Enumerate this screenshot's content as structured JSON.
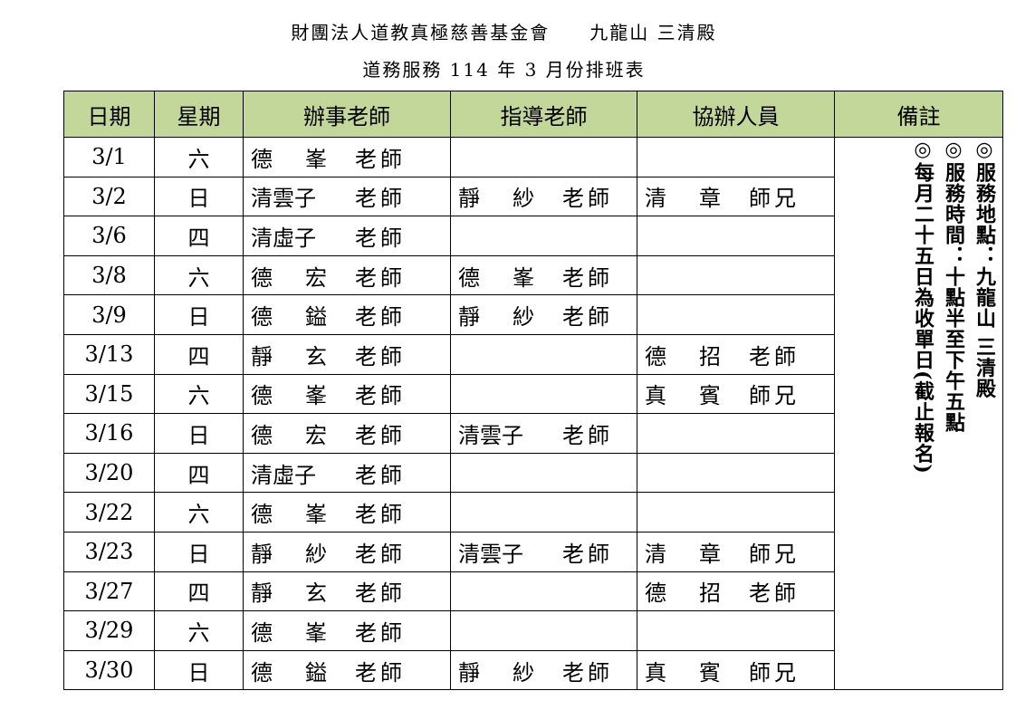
{
  "title_line1": "財團法人道教真極慈善基金會　　九龍山 三清殿",
  "title_line2": "道務服務 114 年 3 月份排班表",
  "headers": [
    "日期",
    "星期",
    "辦事老師",
    "指導老師",
    "協辦人員",
    "備註"
  ],
  "rows": [
    {
      "date": "3/1",
      "day": "六",
      "main": {
        "name": "德峯",
        "title": "老師"
      },
      "guide": null,
      "assist": null
    },
    {
      "date": "3/2",
      "day": "日",
      "main": {
        "name": "清雲子",
        "title": "老師"
      },
      "guide": {
        "name": "靜紗",
        "title": "老師"
      },
      "assist": {
        "name": "清章",
        "title": "師兄"
      }
    },
    {
      "date": "3/6",
      "day": "四",
      "main": {
        "name": "清虛子",
        "title": "老師"
      },
      "guide": null,
      "assist": null
    },
    {
      "date": "3/8",
      "day": "六",
      "main": {
        "name": "德宏",
        "title": "老師"
      },
      "guide": {
        "name": "德峯",
        "title": "老師"
      },
      "assist": null
    },
    {
      "date": "3/9",
      "day": "日",
      "main": {
        "name": "德鎰",
        "title": "老師"
      },
      "guide": {
        "name": "靜紗",
        "title": "老師"
      },
      "assist": null
    },
    {
      "date": "3/13",
      "day": "四",
      "main": {
        "name": "靜玄",
        "title": "老師"
      },
      "guide": null,
      "assist": {
        "name": "德招",
        "title": "老師"
      }
    },
    {
      "date": "3/15",
      "day": "六",
      "main": {
        "name": "德峯",
        "title": "老師"
      },
      "guide": null,
      "assist": {
        "name": "真賓",
        "title": "師兄"
      }
    },
    {
      "date": "3/16",
      "day": "日",
      "main": {
        "name": "德宏",
        "title": "老師"
      },
      "guide": {
        "name": "清雲子",
        "title": "老師"
      },
      "assist": null
    },
    {
      "date": "3/20",
      "day": "四",
      "main": {
        "name": "清虛子",
        "title": "老師"
      },
      "guide": null,
      "assist": null
    },
    {
      "date": "3/22",
      "day": "六",
      "main": {
        "name": "德峯",
        "title": "老師"
      },
      "guide": null,
      "assist": null
    },
    {
      "date": "3/23",
      "day": "日",
      "main": {
        "name": "靜紗",
        "title": "老師"
      },
      "guide": {
        "name": "清雲子",
        "title": "老師"
      },
      "assist": {
        "name": "清章",
        "title": "師兄"
      }
    },
    {
      "date": "3/27",
      "day": "四",
      "main": {
        "name": "靜玄",
        "title": "老師"
      },
      "guide": null,
      "assist": {
        "name": "德招",
        "title": "老師"
      }
    },
    {
      "date": "3/29",
      "day": "六",
      "main": {
        "name": "德峯",
        "title": "老師"
      },
      "guide": null,
      "assist": null
    },
    {
      "date": "3/30",
      "day": "日",
      "main": {
        "name": "德鎰",
        "title": "老師"
      },
      "guide": {
        "name": "靜紗",
        "title": "老師"
      },
      "assist": {
        "name": "真賓",
        "title": "師兄"
      }
    }
  ],
  "remarks": [
    "◎服務地點：九龍山 三清殿",
    "◎服務時間：十點半至下午五點",
    "◎每月二十五日為收單日(截止報名)"
  ],
  "colors": {
    "header_bg": "#c4d79b"
  }
}
